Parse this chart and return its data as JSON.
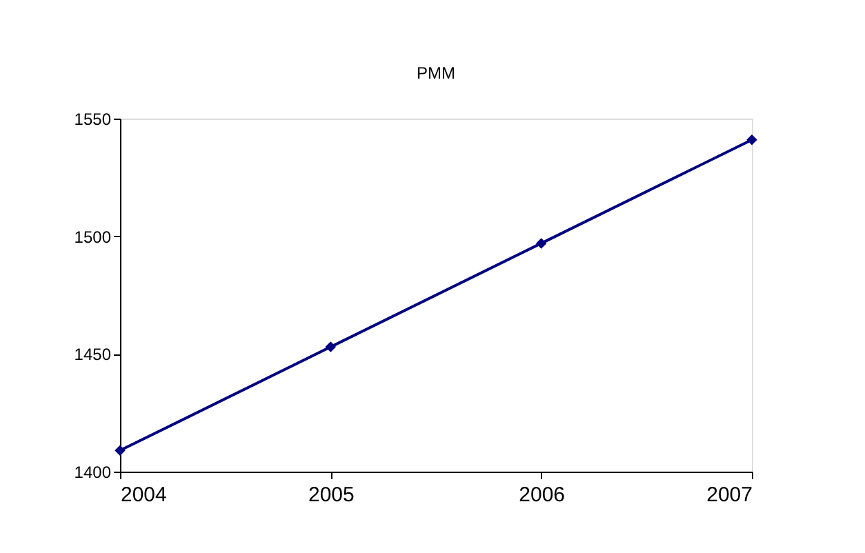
{
  "chart_data": {
    "type": "line",
    "title": "PMM",
    "x": [
      2004,
      2005,
      2006,
      2007
    ],
    "series": [
      {
        "color": "#000080",
        "values": [
          1409,
          1453,
          1497,
          1541
        ]
      }
    ],
    "xlim": [
      2004,
      2007
    ],
    "xticks": [
      2004,
      2005,
      2006,
      2007
    ],
    "ylim": [
      1400,
      1550
    ],
    "yticks": [
      1400,
      1450,
      1500,
      1550
    ],
    "grid": false,
    "marker": "diamond",
    "line_style": "solid"
  }
}
